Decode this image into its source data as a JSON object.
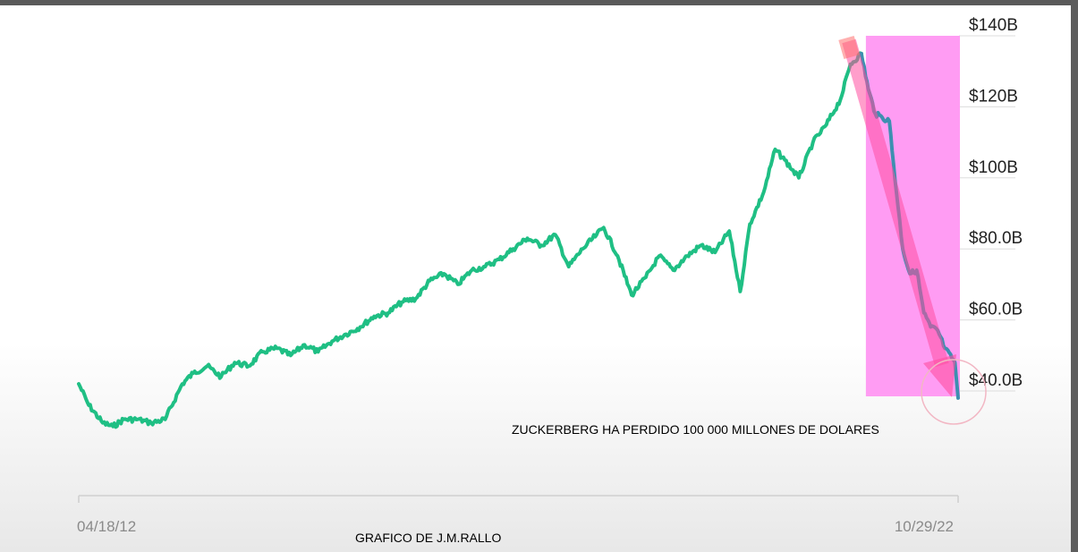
{
  "colors": {
    "line": "#1fbf84",
    "line_drop": "#3e8fb0",
    "highlight": "#ff9cf3",
    "arrow": "#ff4fa0",
    "grid": "#dddddd",
    "axis_text": "#222222"
  },
  "annotations": {
    "loss_note": "ZUCKERBERG HA PERDIDO 100 000 MILLONES DE DOLARES",
    "author_note": "GRAFICO DE J.M.RALLO"
  },
  "chart_data": {
    "type": "line",
    "title": "",
    "xlabel": "",
    "ylabel": "",
    "x_range": [
      "2012-04-18",
      "2022-10-29"
    ],
    "x_tick_labels": [
      "04/18/12",
      "10/29/22"
    ],
    "ylim": [
      30,
      140
    ],
    "y_ticks": [
      140,
      120,
      100,
      80,
      60,
      40
    ],
    "y_tick_labels": [
      "$140B",
      "$120B",
      "$100B",
      "$80.0B",
      "$60.0B",
      "$40.0B"
    ],
    "grid": true,
    "highlight_range": [
      "2021-09-01",
      "2022-10-29"
    ],
    "series": [
      {
        "name": "",
        "x": [
          "2012-04-18",
          "2012-06-01",
          "2012-08-01",
          "2012-09-15",
          "2012-11-01",
          "2013-01-01",
          "2013-03-01",
          "2013-05-01",
          "2013-07-15",
          "2013-09-01",
          "2013-11-01",
          "2014-01-01",
          "2014-03-01",
          "2014-05-01",
          "2014-07-01",
          "2014-09-01",
          "2014-11-01",
          "2015-01-01",
          "2015-03-01",
          "2015-05-01",
          "2015-07-01",
          "2015-09-01",
          "2015-11-01",
          "2016-01-01",
          "2016-03-01",
          "2016-05-01",
          "2016-07-01",
          "2016-09-01",
          "2016-11-01",
          "2017-01-01",
          "2017-03-01",
          "2017-05-01",
          "2017-07-01",
          "2017-09-01",
          "2017-11-01",
          "2018-01-01",
          "2018-03-01",
          "2018-05-01",
          "2018-07-01",
          "2018-08-01",
          "2018-10-01",
          "2018-12-01",
          "2019-02-01",
          "2019-04-01",
          "2019-06-01",
          "2019-08-01",
          "2019-10-01",
          "2019-12-01",
          "2020-02-01",
          "2020-03-20",
          "2020-05-01",
          "2020-07-01",
          "2020-08-20",
          "2020-10-01",
          "2020-12-01",
          "2021-02-01",
          "2021-04-01",
          "2021-06-01",
          "2021-07-15",
          "2021-09-01"
        ],
        "y": [
          42,
          36,
          31,
          30,
          32,
          32,
          31,
          32,
          42,
          45,
          47,
          44,
          48,
          47,
          51,
          52,
          50,
          53,
          51,
          54,
          56,
          58,
          61,
          62,
          65,
          66,
          71,
          73,
          70,
          74,
          75,
          77,
          80,
          83,
          81,
          84,
          75,
          80,
          84,
          86,
          78,
          67,
          72,
          78,
          74,
          78,
          81,
          79,
          85,
          68,
          87,
          96,
          108,
          105,
          100,
          110,
          115,
          122,
          132,
          135
        ]
      },
      {
        "name": "",
        "x": [
          "2021-09-01",
          "2021-10-01",
          "2021-11-01",
          "2021-12-01",
          "2022-01-01",
          "2022-02-01",
          "2022-03-01",
          "2022-04-01",
          "2022-05-01",
          "2022-06-01",
          "2022-07-01",
          "2022-08-01",
          "2022-09-01",
          "2022-10-15",
          "2022-10-29"
        ],
        "y": [
          135,
          125,
          118,
          117,
          116,
          96,
          80,
          73,
          74,
          62,
          58,
          57,
          52,
          48,
          38
        ]
      }
    ]
  }
}
